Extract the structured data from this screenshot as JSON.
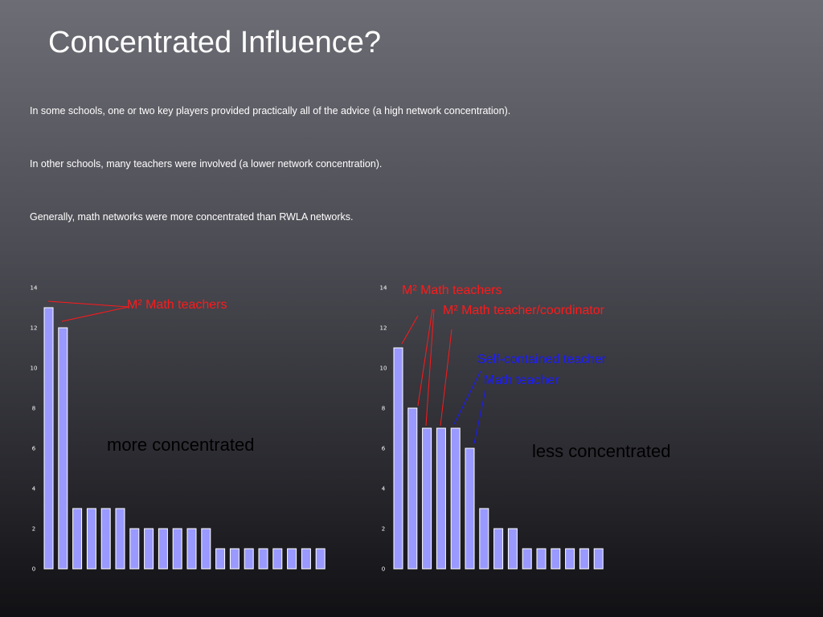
{
  "slide": {
    "title": "Concentrated Influence?",
    "bullets": [
      "In some schools, one or two key players provided practically all of the advice (a high network concentration).",
      "In other schools, many teachers were involved (a lower network concentration).",
      "Generally, math networks were more concentrated than RWLA networks."
    ]
  },
  "colors": {
    "bar_fill": "#9999ff",
    "annotation_red": "#ff1a1a",
    "annotation_blue": "#1a1aff"
  },
  "chart_data": [
    {
      "type": "bar",
      "values": [
        13,
        12,
        3,
        3,
        3,
        3,
        2,
        2,
        2,
        2,
        2,
        2,
        1,
        1,
        1,
        1,
        1,
        1,
        1,
        1
      ],
      "ylim": [
        0,
        14
      ],
      "yticks": [
        "0",
        "2",
        "4",
        "6",
        "8",
        "10",
        "12",
        "14"
      ],
      "grid": false,
      "legend": false,
      "annotations": {
        "m2_math_teachers": "M² Math teachers",
        "caption": "more concentrated"
      }
    },
    {
      "type": "bar",
      "values": [
        11,
        8,
        7,
        7,
        7,
        6,
        3,
        2,
        2,
        1,
        1,
        1,
        1,
        1,
        1
      ],
      "ylim": [
        0,
        14
      ],
      "yticks": [
        "0",
        "2",
        "4",
        "6",
        "8",
        "10",
        "12",
        "14"
      ],
      "grid": false,
      "legend": false,
      "annotations": {
        "m2_math_teachers": "M² Math teachers",
        "m2_math_coordinator": "M² Math teacher/coordinator",
        "self_contained_teacher": "Self-contained teacher",
        "math_teacher": "Math teacher",
        "caption": "less concentrated"
      }
    }
  ]
}
